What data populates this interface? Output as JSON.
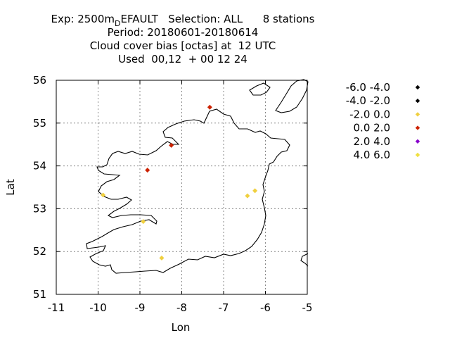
{
  "title": {
    "line1_prefix": "Exp: 2500m",
    "line1_sub": "D",
    "line1_suffix": "EFAULT   Selection: ALL      8 stations",
    "line2": "Period: 20180601-20180614",
    "line3": "Cloud cover bias [octas] at  12 UTC",
    "line4": "Used  00,12  + 00 12 24"
  },
  "chart_data": {
    "type": "scatter",
    "xlabel": "Lon",
    "ylabel": "Lat",
    "xlim": [
      -11,
      -5
    ],
    "ylim": [
      51,
      56
    ],
    "xticks": [
      -11,
      -10,
      -9,
      -8,
      -7,
      -6,
      -5
    ],
    "yticks": [
      51,
      52,
      53,
      54,
      55,
      56
    ],
    "grid": true,
    "legend_position": "right",
    "legend": [
      {
        "label": "-6.0 -4.0",
        "color": "#000000"
      },
      {
        "label": "-4.0 -2.0",
        "color": "#000000"
      },
      {
        "label": "-2.0 0.0",
        "color": "#f0d040"
      },
      {
        "label": "0.0 2.0",
        "color": "#cc2200"
      },
      {
        "label": "2.0 4.0",
        "color": "#8800cc"
      },
      {
        "label": "4.0 6.0",
        "color": "#f0e040"
      }
    ],
    "points": [
      {
        "lon": -7.33,
        "lat": 55.37,
        "color": "#cc2200"
      },
      {
        "lon": -8.25,
        "lat": 54.48,
        "color": "#cc2200"
      },
      {
        "lon": -8.82,
        "lat": 53.9,
        "color": "#cc2200"
      },
      {
        "lon": -9.88,
        "lat": 53.32,
        "color": "#f0d040"
      },
      {
        "lon": -6.25,
        "lat": 53.42,
        "color": "#f0d040"
      },
      {
        "lon": -6.43,
        "lat": 53.3,
        "color": "#f0d040"
      },
      {
        "lon": -8.92,
        "lat": 52.7,
        "color": "#f0d040"
      },
      {
        "lon": -8.48,
        "lat": 51.85,
        "color": "#f0d040"
      }
    ]
  }
}
